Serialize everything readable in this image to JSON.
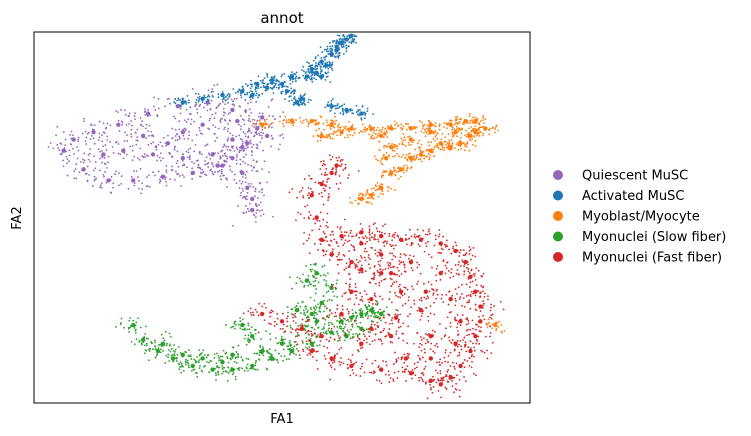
{
  "chart_data": {
    "type": "scatter",
    "title": "annot",
    "xlabel": "FA1",
    "ylabel": "FA2",
    "xlim": [
      0,
      100
    ],
    "ylim": [
      0,
      100
    ],
    "ticks": "none",
    "grid": false,
    "legend_position": "right",
    "series": [
      {
        "name": "Quiescent MuSC",
        "color": "#9467bd",
        "points": [
          [
            6,
            68
          ],
          [
            10,
            63
          ],
          [
            15,
            60
          ],
          [
            20,
            60
          ],
          [
            26,
            61
          ],
          [
            32,
            62
          ],
          [
            37,
            64
          ],
          [
            42,
            69
          ],
          [
            45,
            74
          ],
          [
            40,
            79
          ],
          [
            35,
            81
          ],
          [
            29,
            80
          ],
          [
            23,
            78
          ],
          [
            17,
            75
          ],
          [
            12,
            73
          ],
          [
            8,
            71
          ],
          [
            18,
            68
          ],
          [
            24,
            67
          ],
          [
            30,
            66
          ],
          [
            36,
            67
          ],
          [
            40,
            71
          ],
          [
            30,
            73
          ],
          [
            22,
            72
          ],
          [
            14,
            67
          ],
          [
            27,
            70
          ],
          [
            34,
            75
          ],
          [
            41,
            76
          ],
          [
            43,
            70
          ],
          [
            40,
            66
          ],
          [
            38,
            64
          ],
          [
            42,
            62
          ],
          [
            43,
            58
          ],
          [
            44,
            55
          ],
          [
            44,
            52
          ],
          [
            47,
            72
          ],
          [
            46,
            77
          ]
        ],
        "spread": [
          2.2,
          2.0
        ]
      },
      {
        "name": "Activated MuSC",
        "color": "#1f77b4",
        "points": [
          [
            30,
            81
          ],
          [
            34,
            82
          ],
          [
            38,
            83
          ],
          [
            42,
            84
          ],
          [
            45,
            86
          ],
          [
            48,
            87
          ],
          [
            52,
            88
          ],
          [
            55,
            88
          ],
          [
            58,
            88
          ],
          [
            51,
            84
          ],
          [
            53,
            81
          ],
          [
            56,
            90
          ],
          [
            58,
            92
          ],
          [
            60,
            94
          ],
          [
            61,
            96
          ],
          [
            62,
            97
          ],
          [
            63,
            98
          ],
          [
            64,
            99
          ],
          [
            59,
            91
          ],
          [
            61,
            95
          ],
          [
            47,
            85
          ],
          [
            44,
            83
          ],
          [
            50,
            86
          ],
          [
            57,
            89
          ],
          [
            60,
            80
          ],
          [
            63,
            79
          ],
          [
            66,
            78
          ],
          [
            54,
            82
          ]
        ],
        "spread": [
          1.2,
          0.8
        ]
      },
      {
        "name": "Myoblast/Myocyte",
        "color": "#ff7f0e",
        "points": [
          [
            46,
            75
          ],
          [
            52,
            76
          ],
          [
            56,
            76
          ],
          [
            60,
            75
          ],
          [
            64,
            74
          ],
          [
            68,
            74
          ],
          [
            72,
            74
          ],
          [
            76,
            74
          ],
          [
            80,
            75
          ],
          [
            84,
            75
          ],
          [
            87,
            76
          ],
          [
            89,
            76
          ],
          [
            91,
            74
          ],
          [
            88,
            72
          ],
          [
            86,
            70
          ],
          [
            84,
            69
          ],
          [
            82,
            70
          ],
          [
            80,
            68
          ],
          [
            78,
            67
          ],
          [
            76,
            66
          ],
          [
            74,
            63
          ],
          [
            70,
            72
          ],
          [
            72,
            69
          ],
          [
            71,
            66
          ],
          [
            72,
            62
          ],
          [
            70,
            58
          ],
          [
            68,
            56
          ],
          [
            66,
            55
          ],
          [
            76,
            71
          ],
          [
            80,
            73
          ],
          [
            85,
            73
          ],
          [
            89,
            73
          ],
          [
            58,
            72
          ],
          [
            62,
            73
          ],
          [
            93,
            21
          ]
        ],
        "spread": [
          1.2,
          0.8
        ]
      },
      {
        "name": "Myonuclei (Slow fiber)",
        "color": "#2ca02c",
        "points": [
          [
            20,
            21
          ],
          [
            22,
            17
          ],
          [
            25,
            14
          ],
          [
            28,
            12
          ],
          [
            32,
            10
          ],
          [
            36,
            9
          ],
          [
            40,
            9
          ],
          [
            44,
            10
          ],
          [
            48,
            12
          ],
          [
            52,
            14
          ],
          [
            56,
            16
          ],
          [
            60,
            19
          ],
          [
            62,
            22
          ],
          [
            64,
            23
          ],
          [
            66,
            24
          ],
          [
            68,
            25
          ],
          [
            70,
            24
          ],
          [
            54,
            20
          ],
          [
            56,
            24
          ],
          [
            58,
            27
          ],
          [
            60,
            31
          ],
          [
            46,
            14
          ],
          [
            50,
            16
          ],
          [
            44,
            18
          ],
          [
            42,
            21
          ],
          [
            40,
            13
          ],
          [
            38,
            11
          ],
          [
            34,
            12
          ],
          [
            30,
            13
          ],
          [
            26,
            16
          ],
          [
            53,
            25
          ],
          [
            57,
            22
          ],
          [
            63,
            18
          ],
          [
            66,
            20
          ],
          [
            55,
            33
          ],
          [
            57,
            35
          ]
        ],
        "spread": [
          1.5,
          1.2
        ]
      },
      {
        "name": "Myonuclei (Fast fiber)",
        "color": "#d62728",
        "points": [
          [
            62,
            45
          ],
          [
            66,
            46
          ],
          [
            70,
            45
          ],
          [
            74,
            44
          ],
          [
            78,
            44
          ],
          [
            82,
            43
          ],
          [
            85,
            41
          ],
          [
            87,
            38
          ],
          [
            88,
            34
          ],
          [
            89,
            30
          ],
          [
            90,
            26
          ],
          [
            90,
            22
          ],
          [
            89,
            18
          ],
          [
            88,
            14
          ],
          [
            86,
            10
          ],
          [
            84,
            7
          ],
          [
            82,
            5
          ],
          [
            80,
            6
          ],
          [
            76,
            8
          ],
          [
            70,
            9
          ],
          [
            64,
            10
          ],
          [
            60,
            12
          ],
          [
            56,
            14
          ],
          [
            58,
            18
          ],
          [
            62,
            24
          ],
          [
            64,
            30
          ],
          [
            66,
            36
          ],
          [
            60,
            40
          ],
          [
            58,
            44
          ],
          [
            57,
            50
          ],
          [
            56,
            56
          ],
          [
            58,
            59
          ],
          [
            60,
            62
          ],
          [
            61,
            64
          ],
          [
            70,
            35
          ],
          [
            74,
            30
          ],
          [
            78,
            25
          ],
          [
            80,
            18
          ],
          [
            84,
            28
          ],
          [
            76,
            38
          ],
          [
            70,
            40
          ],
          [
            82,
            35
          ],
          [
            86,
            22
          ],
          [
            72,
            18
          ],
          [
            66,
            16
          ],
          [
            75,
            12
          ],
          [
            80,
            12
          ],
          [
            85,
            16
          ],
          [
            79,
            30
          ],
          [
            73,
            23
          ],
          [
            68,
            28
          ],
          [
            72,
            35
          ],
          [
            46,
            24
          ],
          [
            50,
            22
          ],
          [
            54,
            20
          ],
          [
            66,
            43
          ],
          [
            64,
            38
          ],
          [
            68,
            20
          ]
        ],
        "spread": [
          1.8,
          1.5
        ]
      }
    ]
  },
  "legend": {
    "items": [
      {
        "label": "Quiescent MuSC",
        "color": "#9467bd"
      },
      {
        "label": "Activated MuSC",
        "color": "#1f77b4"
      },
      {
        "label": "Myoblast/Myocyte",
        "color": "#ff7f0e"
      },
      {
        "label": "Myonuclei (Slow fiber)",
        "color": "#2ca02c"
      },
      {
        "label": "Myonuclei (Fast fiber)",
        "color": "#d62728"
      }
    ]
  }
}
